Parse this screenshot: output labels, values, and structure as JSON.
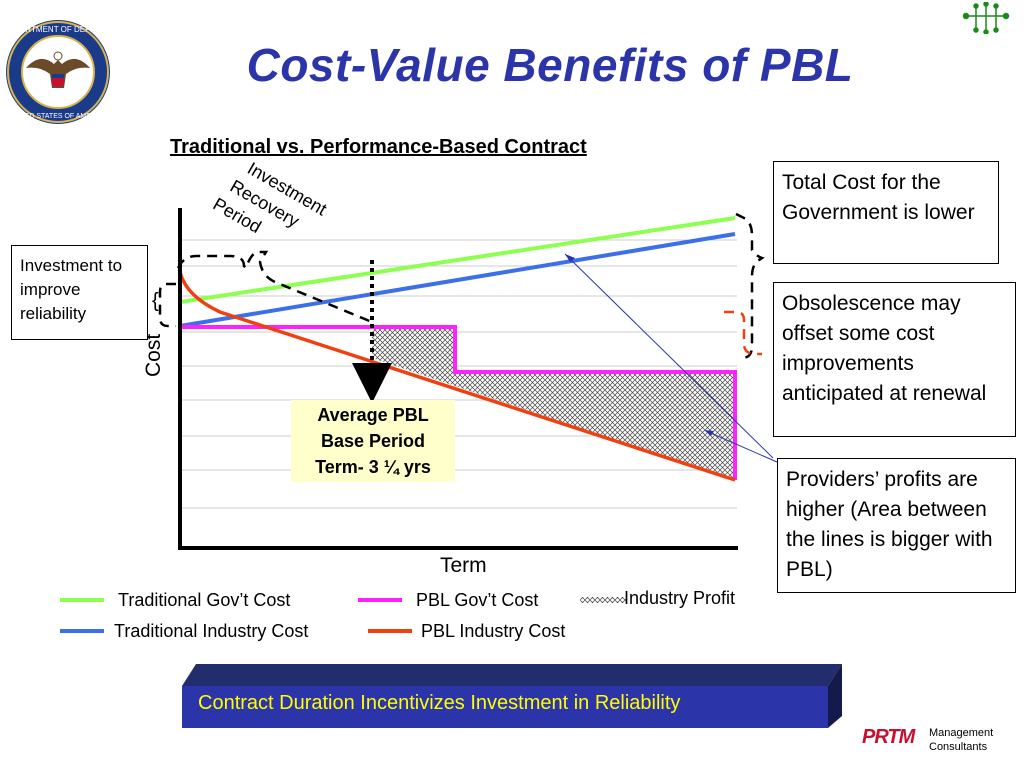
{
  "header": {
    "title": "Cost-Value Benefits of PBL",
    "seal_text": "DEPARTMENT OF DEFENSE UNITED STATES OF AMERICA"
  },
  "chart": {
    "subtitle": "Traditional vs. Performance-Based Contract",
    "ylabel": "Cost",
    "xlabel": "Term",
    "recovery_label": [
      "Investment",
      "Recovery",
      "Period"
    ],
    "average_box": [
      "Average PBL",
      "Base Period",
      "Term- 3 ¼ yrs"
    ],
    "colors": {
      "traditional_gov": "#8cff50",
      "traditional_industry": "#3d6fe8",
      "pbl_gov": "#ff22ff",
      "pbl_industry": "#f04010"
    }
  },
  "callouts": {
    "total_cost": "Total Cost for the Government is lower",
    "obsolescence": "Obsolescence may offset some cost improvements anticipated at renewal",
    "providers": "Providers’ profits are higher (Area between the lines is bigger with PBL)",
    "investment": "Investment to improve reliability"
  },
  "legend": {
    "traditional_gov": "Traditional Gov’t Cost",
    "pbl_gov": "PBL Gov’t Cost",
    "industry_profit": "Industry Profit",
    "traditional_industry": "Traditional Industry Cost",
    "pbl_industry": "PBL Industry Cost"
  },
  "footer": {
    "banner": "Contract Duration Incentivizes Investment in Reliability",
    "logo": "PRTM",
    "company_line1": "Management",
    "company_line2": "Consultants"
  }
}
